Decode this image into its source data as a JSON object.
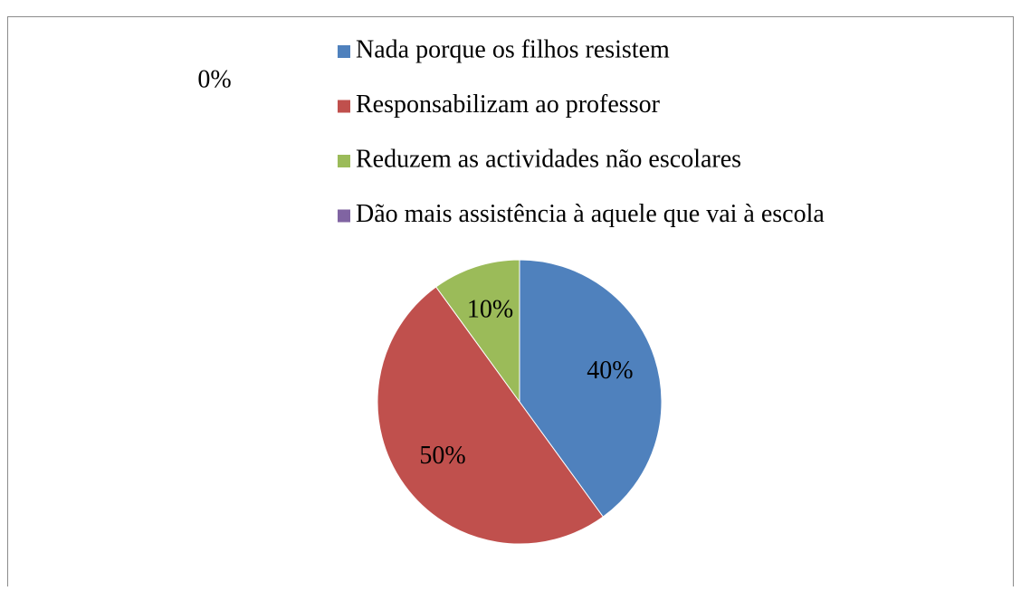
{
  "chart_data": {
    "type": "pie",
    "categories": [
      "Nada porque os filhos resistem",
      "Responsabilizam ao professor",
      "Reduzem as actividades não escolares",
      "Dão mais assistência à aquele que vai à escola"
    ],
    "values": [
      40,
      50,
      10,
      0
    ],
    "value_labels": [
      "40%",
      "50%",
      "10%",
      "0%"
    ],
    "colors": [
      "#4f81bd",
      "#c0504d",
      "#9bbb59",
      "#8064a2"
    ],
    "legend": "top"
  }
}
